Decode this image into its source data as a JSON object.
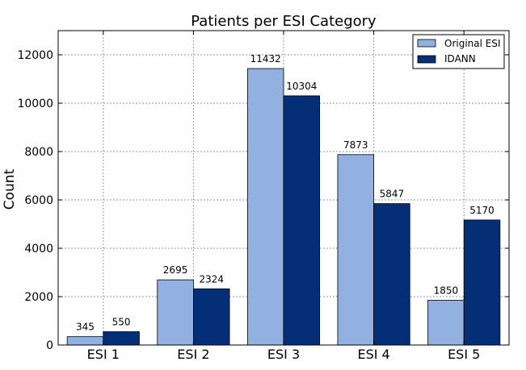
{
  "chart_data": {
    "type": "bar",
    "title": "Patients per ESI Category",
    "xlabel": "",
    "ylabel": "Count",
    "categories": [
      "ESI 1",
      "ESI 2",
      "ESI 3",
      "ESI 4",
      "ESI 5"
    ],
    "series": [
      {
        "name": "Original ESI",
        "values": [
          345,
          2695,
          11432,
          7873,
          1850
        ],
        "color": "#92b0e0"
      },
      {
        "name": "IDANN",
        "values": [
          550,
          2324,
          10304,
          5847,
          5170
        ],
        "color": "#042e75"
      }
    ],
    "ylim": [
      0,
      13000
    ],
    "yticks": [
      0,
      2000,
      4000,
      6000,
      8000,
      10000,
      12000
    ],
    "grid": true,
    "legend_position": "top-right"
  }
}
